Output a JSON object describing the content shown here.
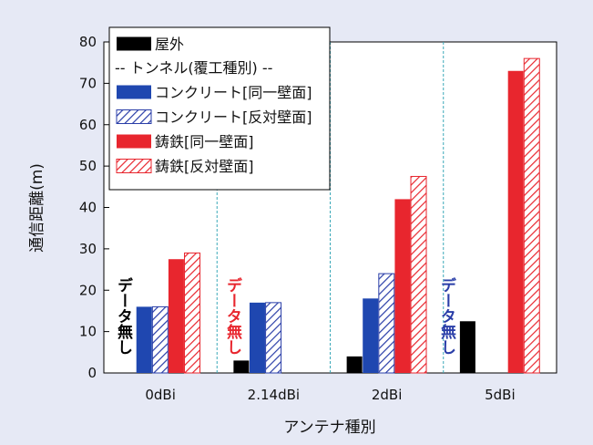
{
  "chart_data": {
    "type": "bar",
    "xlabel": "アンテナ種別",
    "ylabel": "通信距離(m)",
    "ylim": [
      0,
      80
    ],
    "yticks": [
      0,
      10,
      20,
      30,
      40,
      50,
      60,
      70,
      80
    ],
    "categories": [
      "0dBi",
      "2.14dBi",
      "2dBi",
      "5dBi"
    ],
    "legend_group_label": "-- トンネル(覆工種別) --",
    "series": [
      {
        "name": "屋外",
        "values": [
          null,
          3,
          4,
          12.5
        ],
        "color": "#000000",
        "pattern": "solid"
      },
      {
        "name": "コンクリート[同一壁面]",
        "values": [
          16,
          17,
          18,
          null
        ],
        "color": "#1f47b0",
        "pattern": "solid"
      },
      {
        "name": "コンクリート[反対壁面]",
        "values": [
          16,
          17,
          24,
          null
        ],
        "color": "#2a3ea8",
        "pattern": "hatch"
      },
      {
        "name": "鋳鉄[同一壁面]",
        "values": [
          27.5,
          null,
          42,
          73
        ],
        "color": "#e8262e",
        "pattern": "solid"
      },
      {
        "name": "鋳鉄[反対壁面]",
        "values": [
          29,
          null,
          47.5,
          76
        ],
        "color": "#e8262e",
        "pattern": "hatch"
      }
    ],
    "annotations": [
      {
        "text": "データ無し",
        "category": "0dBi",
        "color": "#000000"
      },
      {
        "text": "データ無し",
        "category": "2.14dBi",
        "color": "#e8262e"
      },
      {
        "text": "データ無し",
        "category": "5dBi",
        "color": "#2a3ea8"
      }
    ],
    "grid": false,
    "category_separators": "dashed-teal",
    "legend_position": "top-left"
  }
}
